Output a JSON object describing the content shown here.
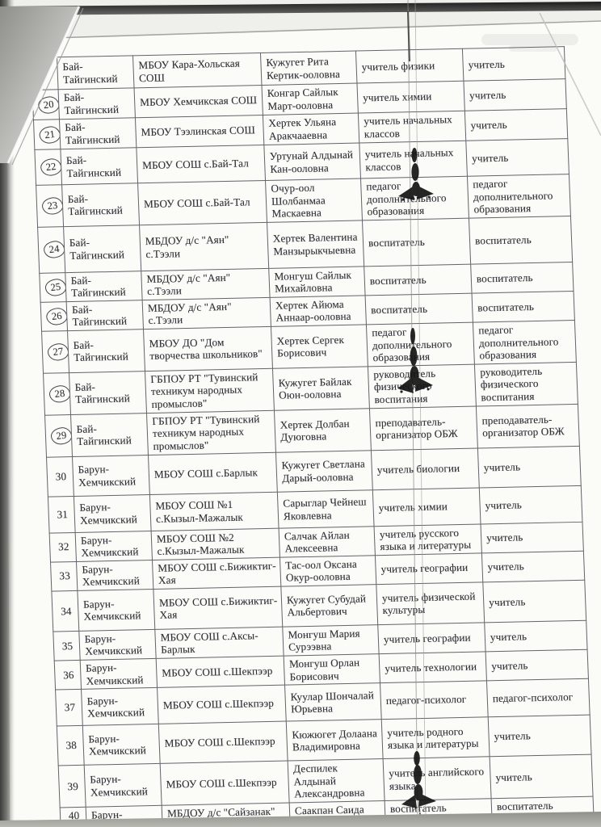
{
  "colors": {
    "paper": "#fbfbf8",
    "scanner_background": "#b4b4ae",
    "table_line": "#63636a",
    "text_ink": "#303036",
    "blot_ink": "#161616"
  },
  "table": {
    "rows": [
      {
        "num": "",
        "circled": false,
        "district": "Бай-Тайгинский",
        "school": "МБОУ Кара-Хольская СОШ",
        "name": "Кужугет Рита Кертик-ооловна",
        "position": "учитель физики",
        "category": "учитель"
      },
      {
        "num": "20",
        "circled": true,
        "district": "Бай-Тайгинский",
        "school": "МБОУ Хемчикская СОШ",
        "name": "Конгар Сайлык Март-ооловна",
        "position": "учитель химии",
        "category": "учитель"
      },
      {
        "num": "21",
        "circled": true,
        "district": "Бай-Тайгинский",
        "school": "МБОУ Тээлинская СОШ",
        "name": "Хертек Ульяна Аракчааевна",
        "position": "учитель начальных классов",
        "category": "учитель"
      },
      {
        "num": "22",
        "circled": true,
        "district": "Бай-Тайгинский",
        "school": "МБОУ СОШ с.Бай-Тал",
        "name": "Уртунай Алдынай Кан-ооловна",
        "position": "учитель начальных классов",
        "category": "учитель"
      },
      {
        "num": "23",
        "circled": true,
        "district": "Бай-Тайгинский",
        "school": "МБОУ СОШ с.Бай-Тал",
        "name": "Очур-оол Шолбанмаа Маскаевна",
        "position": "педагог дополнительного образования",
        "category": "педагог дополнительного образования"
      },
      {
        "num": "24",
        "circled": true,
        "district": "Бай-Тайгинский",
        "school": "МБДОУ д/с \"Аян\" с.Тээли",
        "name": "Хертек Валентина Манзырыкчыевна",
        "position": "воспитатель",
        "category": "воспитатель"
      },
      {
        "num": "25",
        "circled": true,
        "district": "Бай-Тайгинский",
        "school": "МБДОУ д/с \"Аян\" с.Тээли",
        "name": "Монгуш Сайлык Михайловна",
        "position": "воспитатель",
        "category": "воспитатель"
      },
      {
        "num": "26",
        "circled": true,
        "district": "Бай-Тайгинский",
        "school": "МБДОУ д/с \"Аян\" с.Тээли",
        "name": "Хертек Айюма Аннаар-ооловна",
        "position": "воспитатель",
        "category": "воспитатель"
      },
      {
        "num": "27",
        "circled": true,
        "district": "Бай-Тайгинский",
        "school": "МБОУ  ДО \"Дом творчества школьников\"",
        "name": "Хертек Сергек Борисович",
        "position": "педагог дополнительного образования",
        "category": "педагог дополнительного образования"
      },
      {
        "num": "28",
        "circled": true,
        "district": "Бай-Тайгинский",
        "school": "ГБПОУ РТ \"Тувинский техникум народных промыслов\"",
        "name": "Кужугет Байлак Оюн-ооловна",
        "position": "руководитель физического воспитания",
        "category": "руководитель физического воспитания"
      },
      {
        "num": "29",
        "circled": true,
        "district": "Бай-Тайгинский",
        "school": "ГБПОУ РТ \"Тувинский техникум народных промыслов\"",
        "name": "Хертек Долбан Дуюговна",
        "position": "преподаватель-организатор ОБЖ",
        "category": "преподаватель-организатор ОБЖ"
      },
      {
        "num": "30",
        "circled": false,
        "district": "Барун-Хемчикский",
        "school": "МБОУ СОШ с.Барлык",
        "name": "Кужугет Светлана Дарый-ооловна",
        "position": "учитель биологии",
        "category": "учитель"
      },
      {
        "num": "31",
        "circled": false,
        "district": "Барун-Хемчикский",
        "school": "МБОУ СОШ №1 с.Кызыл-Мажалык",
        "name": "Сарыглар Чейнеш Яковлевна",
        "position": "учитель химии",
        "category": "учитель"
      },
      {
        "num": "32",
        "circled": false,
        "district": "Барун-Хемчикский",
        "school": "МБОУ СОШ №2 с.Кызыл-Мажалык",
        "name": "Салчак Айлан Алексеевна",
        "position": "учитель русского языка и литературы",
        "category": "учитель"
      },
      {
        "num": "33",
        "circled": false,
        "district": "Барун-Хемчикский",
        "school": "МБОУ СОШ с.Бижиктиг-Хая",
        "name": "Тас-оол Оксана Окур-ооловна",
        "position": "учитель географии",
        "category": "учитель"
      },
      {
        "num": "34",
        "circled": false,
        "district": "Барун-Хемчикский",
        "school": "МБОУ СОШ с.Бижиктиг-Хая",
        "name": "Кужугет Субудай Альбертович",
        "position": "учитель физической культуры",
        "category": "учитель"
      },
      {
        "num": "35",
        "circled": false,
        "district": "Барун-Хемчикский",
        "school": "МБОУ СОШ с.Аксы-Барлык",
        "name": "Монгуш Мария Сурээвна",
        "position": "учитель географии",
        "category": "учитель"
      },
      {
        "num": "36",
        "circled": false,
        "district": "Барун-Хемчикский",
        "school": "МБОУ СОШ с.Шекпээр",
        "name": "Монгуш Орлан Борисович",
        "position": "учитель технологии",
        "category": "учитель"
      },
      {
        "num": "37",
        "circled": false,
        "district": "Барун-Хемчикский",
        "school": "МБОУ СОШ с.Шекпээр",
        "name": "Куулар Шончалай Юрьевна",
        "position": "педагог-психолог",
        "category": "педагог-психолог"
      },
      {
        "num": "38",
        "circled": false,
        "district": "Барун-Хемчикский",
        "school": "МБОУ СОШ с.Шекпээр",
        "name": "Кюжюгет Долаана Владимировна",
        "position": "учитель родного языка и литературы",
        "category": "учитель"
      },
      {
        "num": "39",
        "circled": false,
        "district": "Барун-Хемчикский",
        "school": "МБОУ СОШ с.Шекпээр",
        "name": "Деспилек Алдынай Александровна",
        "position": "учитель английского языка",
        "category": "учитель"
      },
      {
        "num": "40",
        "circled": false,
        "district": "Барун-",
        "school": "МБДОУ д/с \"Сайзанак\"",
        "name": "Саакпан Саида",
        "position": "воспитатель",
        "category": "воспитатель"
      }
    ]
  }
}
